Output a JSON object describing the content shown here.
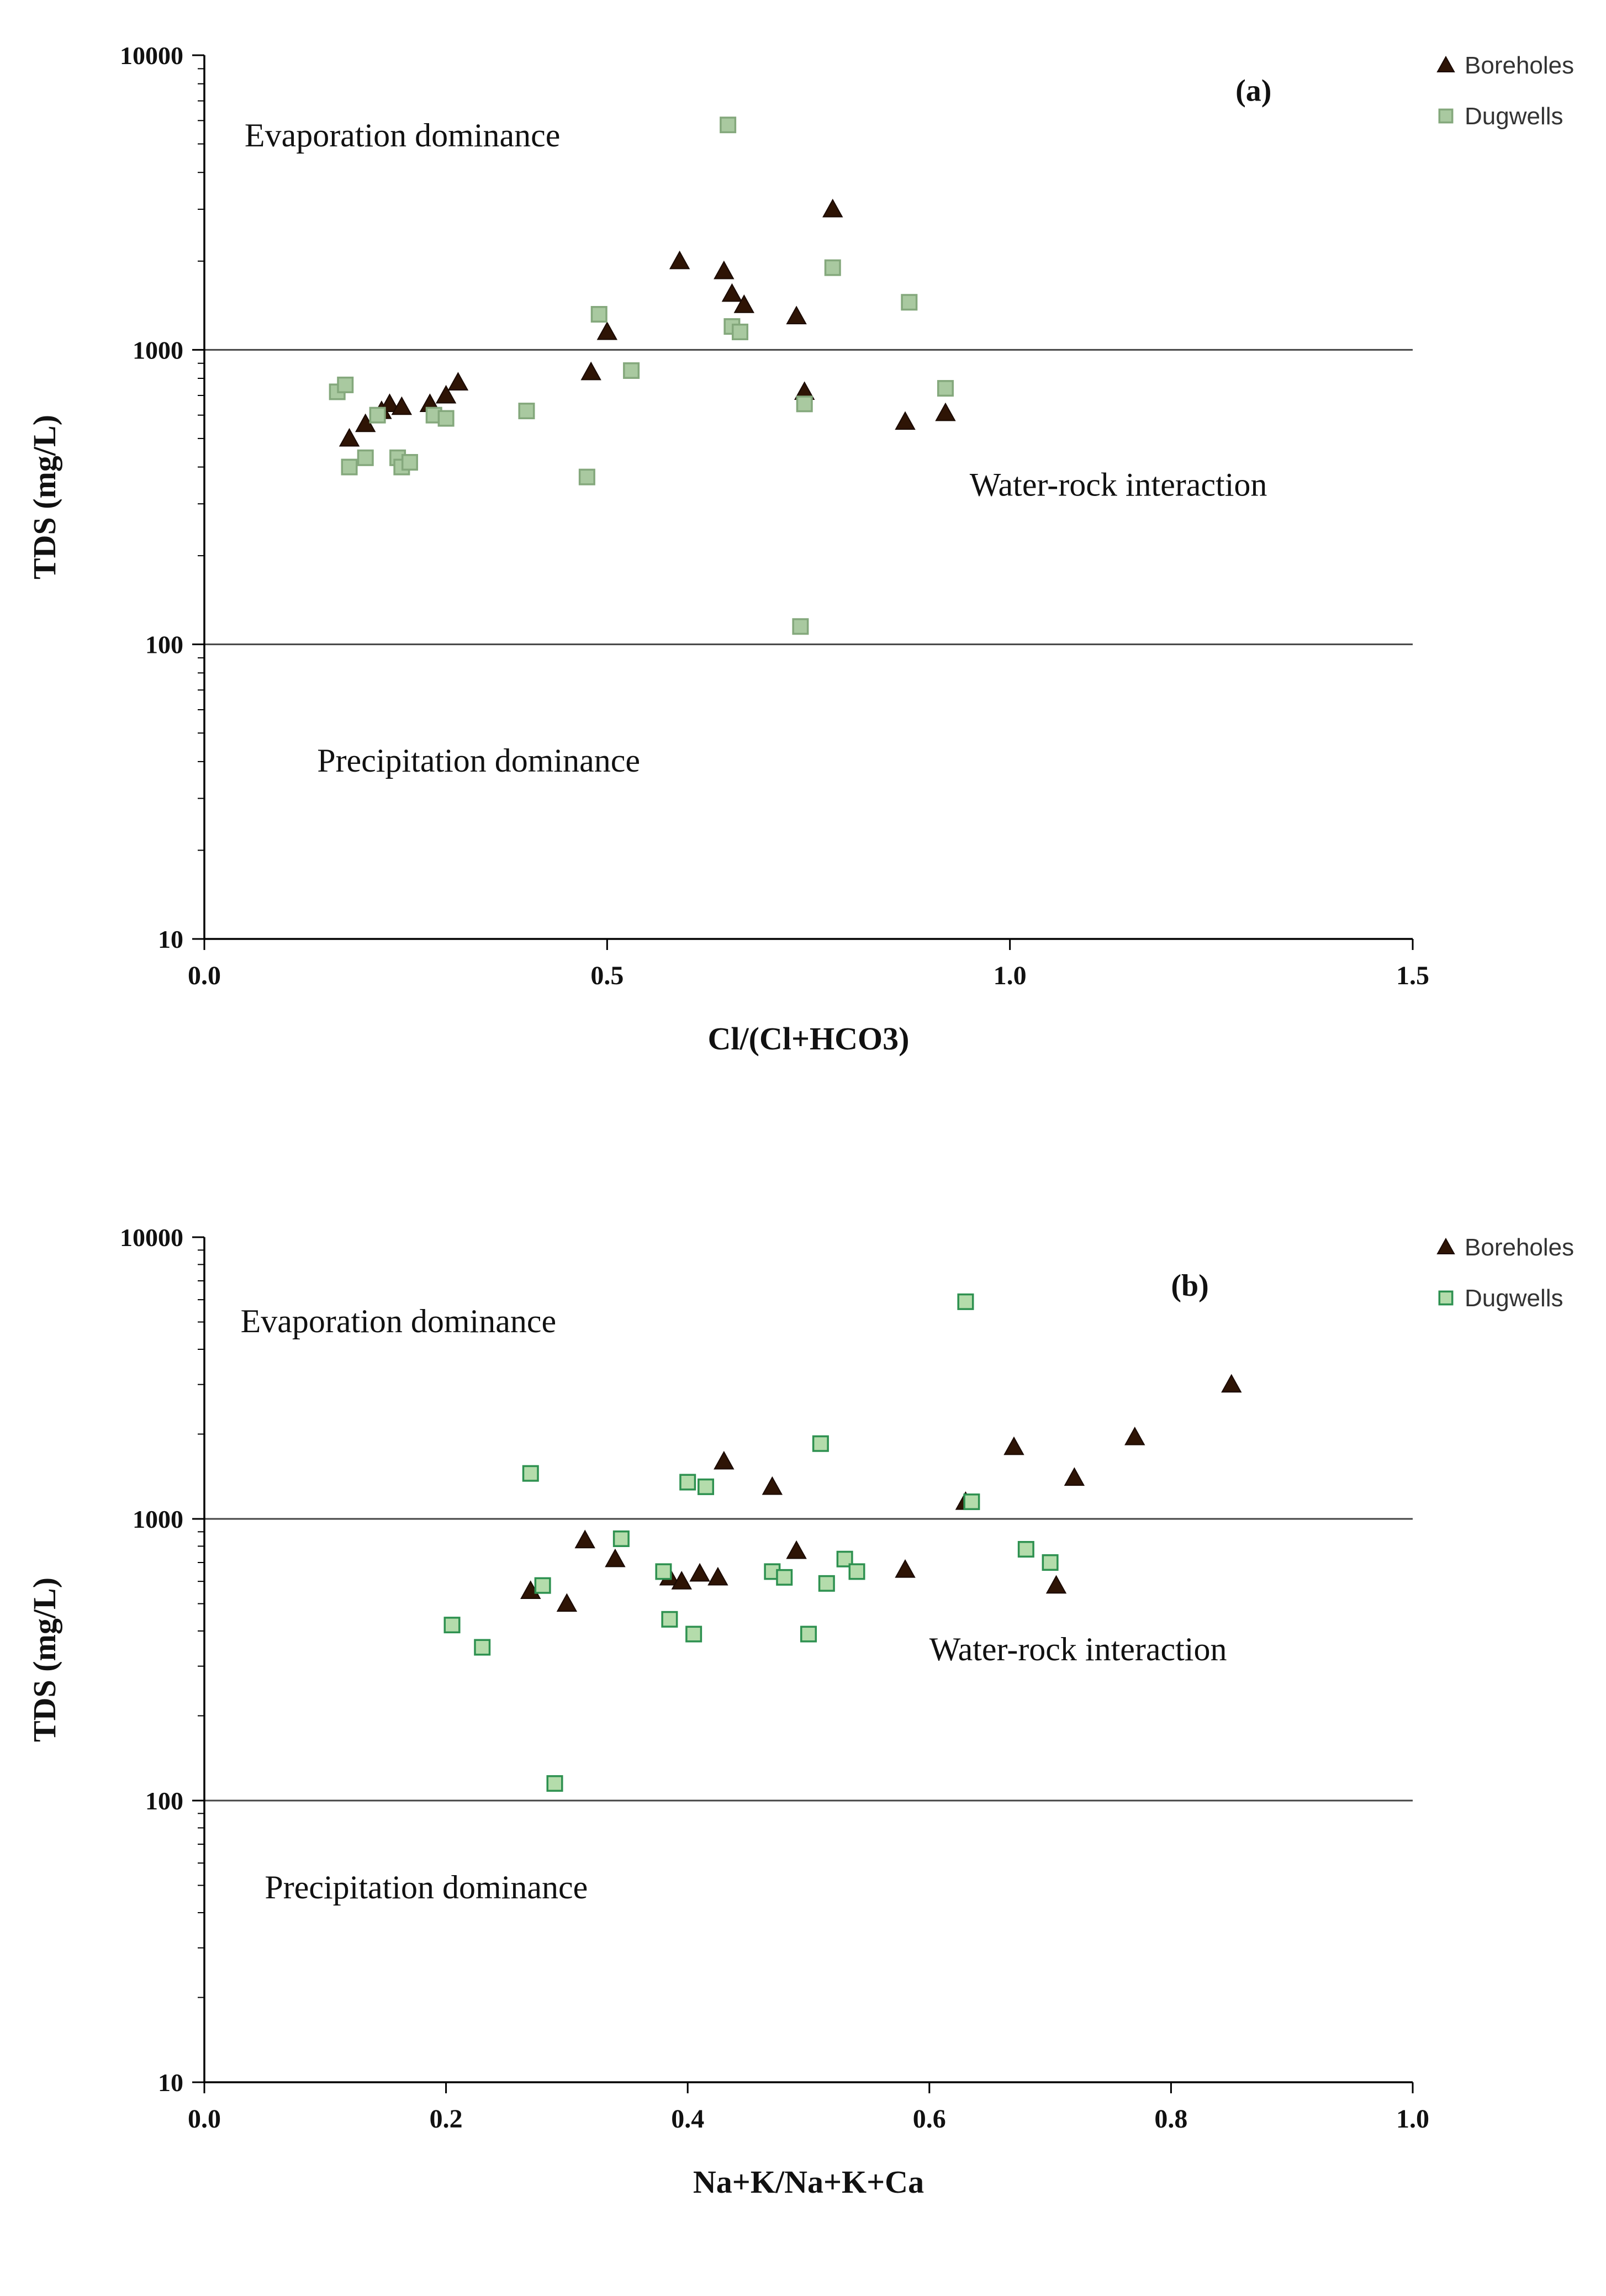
{
  "page": {
    "background": "#ffffff"
  },
  "chart_data": [
    {
      "type": "scatter",
      "panel_label": "(a)",
      "title": "",
      "xlabel": "Cl/(Cl+HCO3)",
      "ylabel": "TDS (mg/L)",
      "xlim": [
        0,
        1.5
      ],
      "ylim": [
        10,
        10000
      ],
      "yscale": "log",
      "x_ticks": [
        0.0,
        0.5,
        1.0,
        1.5
      ],
      "x_tick_labels": [
        "0.0",
        "0.5",
        "1.0",
        "1.5"
      ],
      "y_ticks": [
        10,
        100,
        1000,
        10000
      ],
      "y_tick_labels": [
        "10",
        "100",
        "1000",
        "10000"
      ],
      "hlines": [
        100,
        1000
      ],
      "grid": false,
      "legend_position": "top-right",
      "annotations": [
        {
          "text": "Evaporation dominance",
          "x": 0.05,
          "y": 4900,
          "bold": false
        },
        {
          "text": "Water-rock interaction",
          "x": 0.95,
          "y": 320,
          "bold": false
        },
        {
          "text": "Precipitation dominance",
          "x": 0.14,
          "y": 37,
          "bold": false
        },
        {
          "text": "(a)",
          "x": 1.28,
          "y": 7000,
          "bold": true
        }
      ],
      "series": [
        {
          "name": "Boreholes",
          "marker": "triangle",
          "fill": "#2e1405",
          "stroke": "#1a0a02",
          "points": [
            [
              0.18,
              500
            ],
            [
              0.2,
              560
            ],
            [
              0.22,
              620
            ],
            [
              0.23,
              655
            ],
            [
              0.245,
              640
            ],
            [
              0.28,
              655
            ],
            [
              0.3,
              700
            ],
            [
              0.315,
              775
            ],
            [
              0.48,
              840
            ],
            [
              0.5,
              1150
            ],
            [
              0.59,
              2000
            ],
            [
              0.645,
              1850
            ],
            [
              0.655,
              1550
            ],
            [
              0.67,
              1420
            ],
            [
              0.735,
              1300
            ],
            [
              0.745,
              720
            ],
            [
              0.78,
              3000
            ],
            [
              0.87,
              570
            ],
            [
              0.92,
              610
            ]
          ]
        },
        {
          "name": "Dugwells",
          "marker": "square",
          "fill": "#a9c9a0",
          "stroke": "#84a87c",
          "points": [
            [
              0.165,
              720
            ],
            [
              0.175,
              760
            ],
            [
              0.18,
              400
            ],
            [
              0.2,
              430
            ],
            [
              0.215,
              600
            ],
            [
              0.24,
              430
            ],
            [
              0.245,
              400
            ],
            [
              0.255,
              415
            ],
            [
              0.285,
              600
            ],
            [
              0.3,
              585
            ],
            [
              0.4,
              620
            ],
            [
              0.475,
              370
            ],
            [
              0.49,
              1320
            ],
            [
              0.53,
              850
            ],
            [
              0.65,
              5800
            ],
            [
              0.655,
              1200
            ],
            [
              0.665,
              1150
            ],
            [
              0.74,
              115
            ],
            [
              0.745,
              655
            ],
            [
              0.78,
              1900
            ],
            [
              0.875,
              1450
            ],
            [
              0.92,
              740
            ]
          ]
        }
      ]
    },
    {
      "type": "scatter",
      "panel_label": "(b)",
      "title": "",
      "xlabel": "Na+K/Na+K+Ca",
      "ylabel": "TDS (mg/L)",
      "xlim": [
        0,
        1.0
      ],
      "ylim": [
        10,
        10000
      ],
      "yscale": "log",
      "x_ticks": [
        0.0,
        0.2,
        0.4,
        0.6,
        0.8,
        1.0
      ],
      "x_tick_labels": [
        "0.0",
        "0.2",
        "0.4",
        "0.6",
        "0.8",
        "1.0"
      ],
      "y_ticks": [
        10,
        100,
        1000,
        10000
      ],
      "y_tick_labels": [
        "10",
        "100",
        "1000",
        "10000"
      ],
      "hlines": [
        100,
        1000
      ],
      "grid": false,
      "legend_position": "top-right",
      "annotations": [
        {
          "text": "Evaporation dominance",
          "x": 0.03,
          "y": 4600,
          "bold": false
        },
        {
          "text": "Water-rock interaction",
          "x": 0.6,
          "y": 315,
          "bold": false
        },
        {
          "text": "Precipitation dominance",
          "x": 0.05,
          "y": 45,
          "bold": false
        },
        {
          "text": "(b)",
          "x": 0.8,
          "y": 6200,
          "bold": true
        }
      ],
      "series": [
        {
          "name": "Boreholes",
          "marker": "triangle",
          "fill": "#2e1405",
          "stroke": "#1a0a02",
          "points": [
            [
              0.27,
              555
            ],
            [
              0.3,
              500
            ],
            [
              0.315,
              840
            ],
            [
              0.34,
              720
            ],
            [
              0.385,
              620
            ],
            [
              0.395,
              600
            ],
            [
              0.41,
              640
            ],
            [
              0.425,
              620
            ],
            [
              0.43,
              1600
            ],
            [
              0.47,
              1300
            ],
            [
              0.49,
              770
            ],
            [
              0.58,
              660
            ],
            [
              0.63,
              1150
            ],
            [
              0.67,
              1800
            ],
            [
              0.705,
              580
            ],
            [
              0.72,
              1400
            ],
            [
              0.77,
              1950
            ],
            [
              0.85,
              3000
            ]
          ]
        },
        {
          "name": "Dugwells",
          "marker": "square",
          "fill": "#b4dcab",
          "stroke": "#2e9150",
          "points": [
            [
              0.205,
              420
            ],
            [
              0.23,
              350
            ],
            [
              0.27,
              1450
            ],
            [
              0.28,
              580
            ],
            [
              0.29,
              115
            ],
            [
              0.345,
              850
            ],
            [
              0.38,
              650
            ],
            [
              0.385,
              440
            ],
            [
              0.4,
              1350
            ],
            [
              0.405,
              390
            ],
            [
              0.415,
              1300
            ],
            [
              0.47,
              650
            ],
            [
              0.48,
              620
            ],
            [
              0.5,
              390
            ],
            [
              0.51,
              1850
            ],
            [
              0.515,
              590
            ],
            [
              0.53,
              720
            ],
            [
              0.54,
              650
            ],
            [
              0.63,
              5900
            ],
            [
              0.635,
              1150
            ],
            [
              0.68,
              780
            ],
            [
              0.7,
              700
            ]
          ]
        }
      ]
    }
  ]
}
